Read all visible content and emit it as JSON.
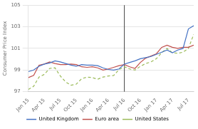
{
  "chart_data": {
    "type": "line",
    "y_label": "Consumer Price Index",
    "categories": [
      "Jan 15",
      null,
      null,
      "Apr 15",
      null,
      null,
      "Jul 15",
      null,
      null,
      "Oct 15",
      null,
      null,
      "Jan 16",
      null,
      null,
      "Apr 16",
      null,
      null,
      "Jul 16",
      null,
      null,
      "Oct 16",
      null,
      null,
      "Jan 17",
      null,
      null,
      "Apr 17",
      null,
      null,
      "Jul 17",
      null
    ],
    "series": [
      {
        "name": "United Kingdom",
        "color": "#4472c4",
        "line_style": "solid",
        "values": [
          98.85,
          99.0,
          99.35,
          99.55,
          99.65,
          99.85,
          99.75,
          99.6,
          99.45,
          99.35,
          99.5,
          99.45,
          99.45,
          99.4,
          99.2,
          99.05,
          99.0,
          99.1,
          99.55,
          99.7,
          99.85,
          100.05,
          100.15,
          100.25,
          100.45,
          100.65,
          100.85,
          100.6,
          100.85,
          101.0,
          102.8,
          103.1
        ]
      },
      {
        "name": "Euro area",
        "color": "#c0504d",
        "line_style": "solid",
        "values": [
          98.3,
          98.5,
          99.45,
          99.55,
          99.75,
          99.6,
          99.5,
          99.5,
          99.55,
          99.5,
          99.3,
          99.25,
          99.3,
          99.2,
          99.0,
          99.1,
          99.25,
          99.4,
          99.5,
          99.3,
          99.15,
          99.7,
          100.1,
          100.3,
          100.5,
          101.1,
          101.3,
          101.1,
          101.0,
          101.1,
          101.1,
          101.3
        ]
      },
      {
        "name": "United States",
        "color": "#9bbb59",
        "line_style": "dashed",
        "values": [
          97.2,
          97.5,
          98.35,
          98.6,
          99.15,
          99.2,
          98.45,
          97.9,
          97.6,
          97.7,
          98.2,
          98.35,
          98.3,
          98.15,
          98.35,
          98.45,
          98.5,
          99.05,
          99.3,
          99.1,
          99.0,
          99.35,
          99.6,
          99.75,
          100.05,
          100.6,
          101.0,
          100.6,
          100.55,
          100.65,
          101.0,
          102.3
        ]
      }
    ],
    "vlines": [
      {
        "x_index": 18,
        "color": "#444444"
      }
    ],
    "ylim": [
      97,
      105
    ],
    "yticks": [
      97,
      99,
      101,
      103,
      105
    ],
    "grid": "y",
    "legend": "bottom"
  }
}
